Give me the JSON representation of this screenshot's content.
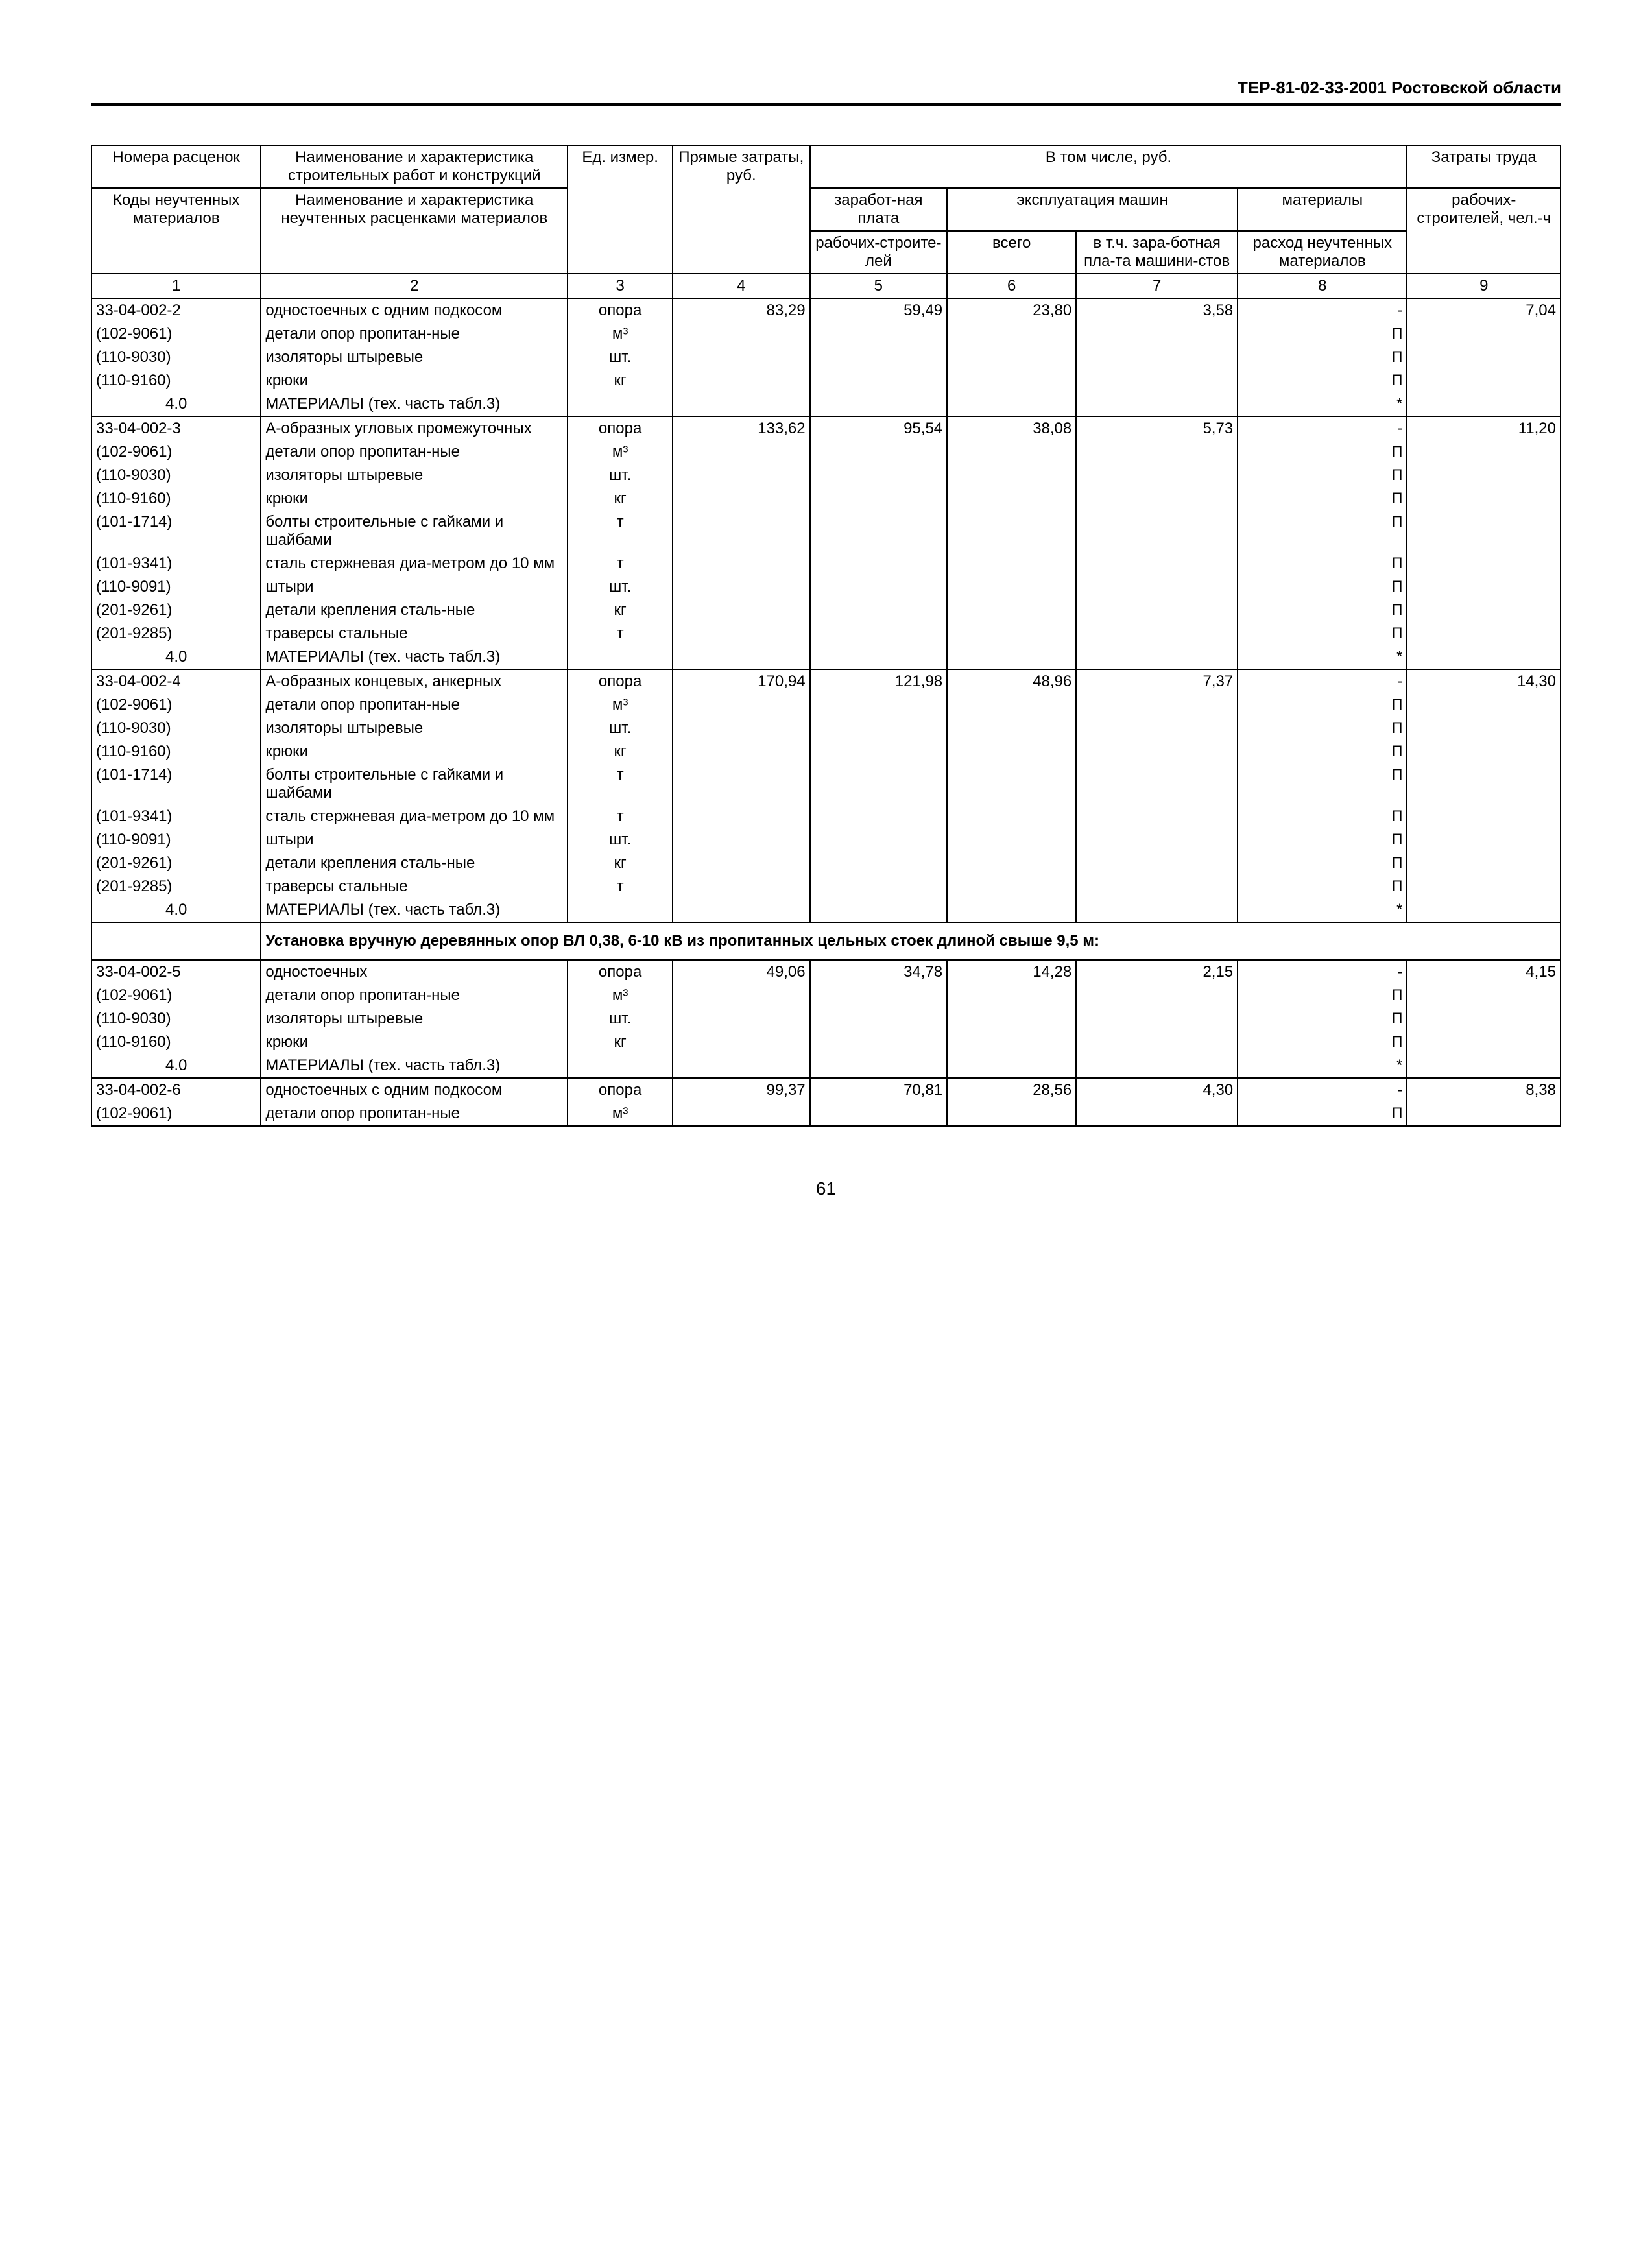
{
  "header": "ТЕР-81-02-33-2001 Ростовской области",
  "page_number": "61",
  "columns": {
    "h1a": "Номера расценок",
    "h1b": "Коды неучтенных материалов",
    "h2a": "Наименование и характеристика строительных работ и конструкций",
    "h2b": "Наименование и характеристика неучтенных расценками материалов",
    "h3": "Ед. измер.",
    "h4": "Прямые затраты, руб.",
    "h_vtom": "В том числе, руб.",
    "h5a": "заработ-ная плата",
    "h5b": "рабочих-строите-лей",
    "h_expl": "эксплуатация машин",
    "h6": "всего",
    "h7": "в т.ч. зара-ботная пла-та машини-стов",
    "h8a": "материалы",
    "h8b": "расход неучтенных материалов",
    "h9a": "Затраты труда",
    "h9b": "рабочих-строителей, чел.-ч",
    "n1": "1",
    "n2": "2",
    "n3": "3",
    "n4": "4",
    "n5": "5",
    "n6": "6",
    "n7": "7",
    "n8": "8",
    "n9": "9"
  },
  "section_title": "Установка вручную деревянных опор ВЛ 0,38, 6-10 кВ из пропитанных цельных стоек длиной свыше 9,5 м:",
  "rows": [
    {
      "group_top": true,
      "c1": "33-04-002-2",
      "c2": "одностоечных с одним подкосом",
      "c3": "опора",
      "c4": "83,29",
      "c5": "59,49",
      "c6": "23,80",
      "c7": "3,58",
      "c8": "-",
      "c9": "7,04"
    },
    {
      "c1": "(102-9061)",
      "c2": "детали опор пропитан-ные",
      "c3": "м³",
      "c8": "П"
    },
    {
      "c1": "(110-9030)",
      "c2": "изоляторы штыревые",
      "c3": "шт.",
      "c8": "П"
    },
    {
      "c1": "(110-9160)",
      "c2": "крюки",
      "c3": "кг",
      "c8": "П"
    },
    {
      "group_bot": true,
      "c1": "4.0",
      "c1ctr": true,
      "c2": "МАТЕРИАЛЫ (тех. часть табл.3)",
      "c8": "*"
    },
    {
      "group_top": true,
      "c1": "33-04-002-3",
      "c2": "А-образных угловых промежуточных",
      "c3": "опора",
      "c4": "133,62",
      "c5": "95,54",
      "c6": "38,08",
      "c7": "5,73",
      "c8": "-",
      "c9": "11,20"
    },
    {
      "c1": "(102-9061)",
      "c2": "детали опор пропитан-ные",
      "c3": "м³",
      "c8": "П"
    },
    {
      "c1": "(110-9030)",
      "c2": "изоляторы штыревые",
      "c3": "шт.",
      "c8": "П"
    },
    {
      "c1": "(110-9160)",
      "c2": "крюки",
      "c3": "кг",
      "c8": "П"
    },
    {
      "c1": "(101-1714)",
      "c2": "болты строительные с гайками и шайбами",
      "c3": "т",
      "c8": "П"
    },
    {
      "c1": "(101-9341)",
      "c2": "сталь стержневая диа-метром до 10 мм",
      "c3": "т",
      "c8": "П"
    },
    {
      "c1": "(110-9091)",
      "c2": "штыри",
      "c3": "шт.",
      "c8": "П"
    },
    {
      "c1": "(201-9261)",
      "c2": "детали крепления сталь-ные",
      "c3": "кг",
      "c8": "П"
    },
    {
      "c1": "(201-9285)",
      "c2": "траверсы стальные",
      "c3": "т",
      "c8": "П"
    },
    {
      "group_bot": true,
      "c1": "4.0",
      "c1ctr": true,
      "c2": "МАТЕРИАЛЫ (тех. часть табл.3)",
      "c8": "*"
    },
    {
      "group_top": true,
      "c1": "33-04-002-4",
      "c2": "А-образных концевых, анкерных",
      "c3": "опора",
      "c4": "170,94",
      "c5": "121,98",
      "c6": "48,96",
      "c7": "7,37",
      "c8": "-",
      "c9": "14,30"
    },
    {
      "c1": "(102-9061)",
      "c2": "детали опор пропитан-ные",
      "c3": "м³",
      "c8": "П"
    },
    {
      "c1": "(110-9030)",
      "c2": "изоляторы штыревые",
      "c3": "шт.",
      "c8": "П"
    },
    {
      "c1": "(110-9160)",
      "c2": "крюки",
      "c3": "кг",
      "c8": "П"
    },
    {
      "c1": "(101-1714)",
      "c2": "болты строительные с гайками и шайбами",
      "c3": "т",
      "c8": "П"
    },
    {
      "c1": "(101-9341)",
      "c2": "сталь стержневая диа-метром до 10 мм",
      "c3": "т",
      "c8": "П"
    },
    {
      "c1": "(110-9091)",
      "c2": "штыри",
      "c3": "шт.",
      "c8": "П"
    },
    {
      "c1": "(201-9261)",
      "c2": "детали крепления сталь-ные",
      "c3": "кг",
      "c8": "П"
    },
    {
      "c1": "(201-9285)",
      "c2": "траверсы стальные",
      "c3": "т",
      "c8": "П"
    },
    {
      "group_bot": true,
      "c1": "4.0",
      "c1ctr": true,
      "c2": "МАТЕРИАЛЫ (тех. часть табл.3)",
      "c8": "*"
    },
    {
      "section": true
    },
    {
      "group_top": true,
      "c1": "33-04-002-5",
      "c2": "одностоечных",
      "c3": "опора",
      "c4": "49,06",
      "c5": "34,78",
      "c6": "14,28",
      "c7": "2,15",
      "c8": "-",
      "c9": "4,15"
    },
    {
      "c1": "(102-9061)",
      "c2": "детали опор пропитан-ные",
      "c3": "м³",
      "c8": "П"
    },
    {
      "c1": "(110-9030)",
      "c2": "изоляторы штыревые",
      "c3": "шт.",
      "c8": "П"
    },
    {
      "c1": "(110-9160)",
      "c2": "крюки",
      "c3": "кг",
      "c8": "П"
    },
    {
      "group_bot": true,
      "c1": "4.0",
      "c1ctr": true,
      "c2": "МАТЕРИАЛЫ (тех. часть табл.3)",
      "c8": "*"
    },
    {
      "group_top": true,
      "c1": "33-04-002-6",
      "c2": "одностоечных с одним подкосом",
      "c3": "опора",
      "c4": "99,37",
      "c5": "70,81",
      "c6": "28,56",
      "c7": "4,30",
      "c8": "-",
      "c9": "8,38"
    },
    {
      "group_bot": true,
      "c1": "(102-9061)",
      "c2": "детали опор пропитан-ные",
      "c3": "м³",
      "c8": "П"
    }
  ]
}
